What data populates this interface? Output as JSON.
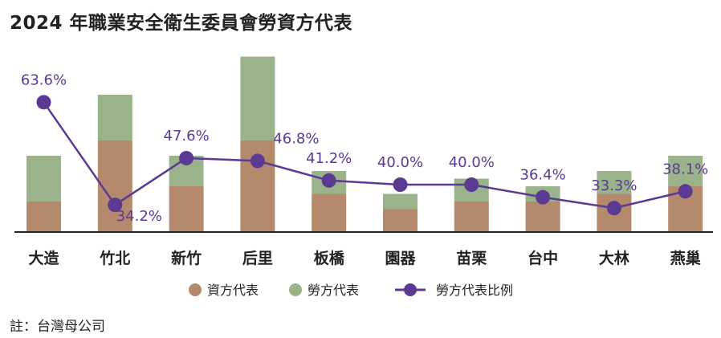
{
  "title": "2024 年職業安全衛生委員會勞資方代表",
  "note": "註：台灣母公司",
  "colors": {
    "employer": "#b58a6c",
    "labor": "#9bb38a",
    "ratio": "#5b3a93",
    "axis": "#222222"
  },
  "chart_data": {
    "type": "bar",
    "stacked": true,
    "title": "2024 年職業安全衛生委員會勞資方代表",
    "categories": [
      "大造",
      "竹北",
      "新竹",
      "后里",
      "板橋",
      "園器",
      "苗栗",
      "台中",
      "大林",
      "燕巢"
    ],
    "series": [
      {
        "name": "資方代表",
        "type": "bar",
        "values": [
          4,
          12,
          6,
          12,
          5,
          3,
          4,
          4,
          5,
          6
        ]
      },
      {
        "name": "勞方代表",
        "type": "bar",
        "values": [
          6,
          6,
          4,
          11,
          3,
          2,
          3,
          2,
          3,
          4
        ]
      },
      {
        "name": "勞方代表比例",
        "type": "line",
        "values": [
          63.6,
          34.2,
          47.6,
          46.8,
          41.2,
          40.0,
          40.0,
          36.4,
          33.3,
          38.1
        ],
        "labels": [
          "63.6%",
          "34.2%",
          "47.6%",
          "46.8%",
          "41.2%",
          "40.0%",
          "40.0%",
          "36.4%",
          "33.3%",
          "38.1%"
        ]
      }
    ],
    "legend": [
      "資方代表",
      "勞方代表",
      "勞方代表比例"
    ],
    "legend_position": "bottom",
    "grid": false
  }
}
